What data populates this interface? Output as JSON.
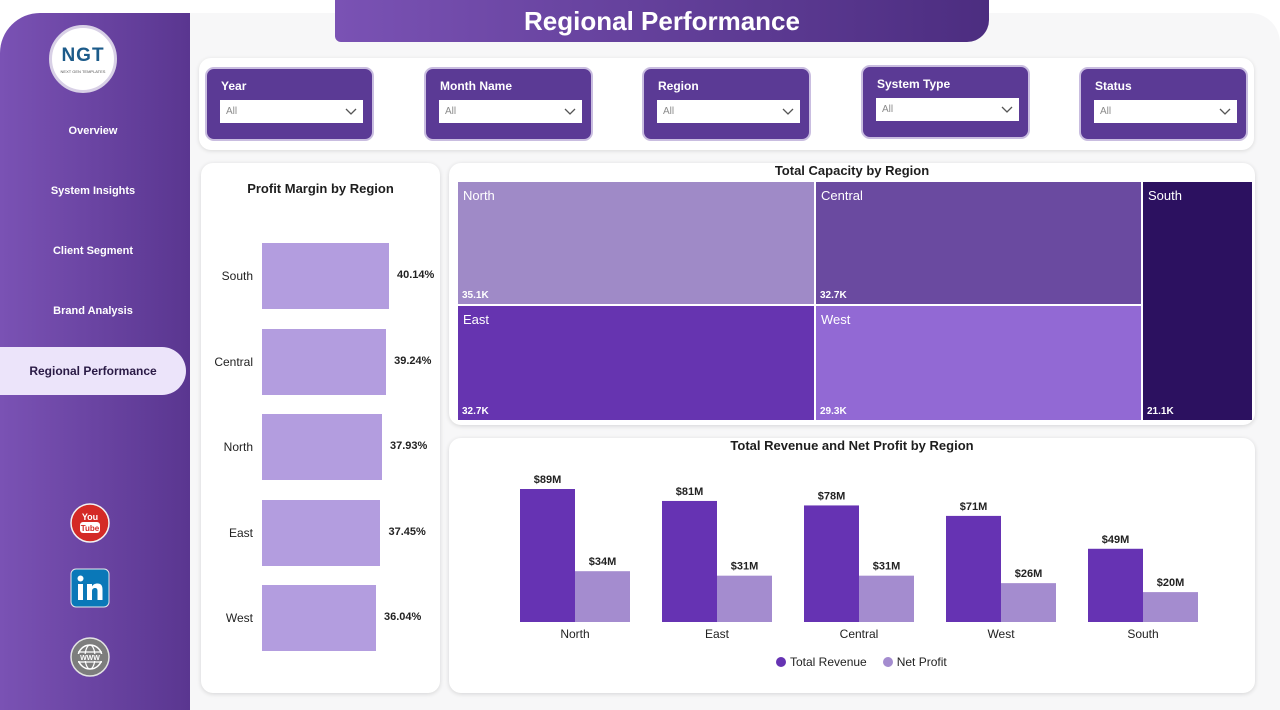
{
  "page": {
    "title": "Regional Performance"
  },
  "logo": {
    "text": "NGT",
    "subtext": "NEXT GEN TEMPLATES"
  },
  "nav": {
    "items": [
      {
        "label": "Overview"
      },
      {
        "label": "System Insights"
      },
      {
        "label": "Client Segment"
      },
      {
        "label": "Brand Analysis"
      },
      {
        "label": "Regional Performance",
        "active": true
      }
    ]
  },
  "social": {
    "icons": [
      "youtube-icon",
      "linkedin-icon",
      "globe-www-icon"
    ]
  },
  "filters": [
    {
      "label": "Year",
      "value": "All"
    },
    {
      "label": "Month Name",
      "value": "All"
    },
    {
      "label": "Region",
      "value": "All"
    },
    {
      "label": "System Type",
      "value": "All"
    },
    {
      "label": "Status",
      "value": "All"
    }
  ],
  "colors": {
    "revenue": "#6633b3",
    "profit": "#a48ccf",
    "margin_bar": "#b39ddf",
    "tm_north": "#9f8ac7",
    "tm_central": "#6a4aa0",
    "tm_south": "#2c1160",
    "tm_east": "#6634b0",
    "tm_west": "#9269d4"
  },
  "chart_data": [
    {
      "type": "bar",
      "orientation": "horizontal",
      "title": "Profit Margin by Region",
      "categories": [
        "South",
        "Central",
        "North",
        "East",
        "West"
      ],
      "values": [
        40.14,
        39.24,
        37.93,
        37.45,
        36.04
      ],
      "labels": [
        "40.14%",
        "39.24%",
        "37.93%",
        "37.45%",
        "36.04%"
      ]
    },
    {
      "type": "treemap",
      "title": "Total Capacity by Region",
      "categories": [
        "North",
        "Central",
        "East",
        "West",
        "South"
      ],
      "values": [
        35.1,
        32.7,
        32.7,
        29.3,
        21.1
      ],
      "labels": [
        "35.1K",
        "32.7K",
        "32.7K",
        "29.3K",
        "21.1K"
      ]
    },
    {
      "type": "bar",
      "title": "Total Revenue and Net Profit by Region",
      "categories": [
        "North",
        "East",
        "Central",
        "West",
        "South"
      ],
      "series": [
        {
          "name": "Total Revenue",
          "values": [
            89,
            81,
            78,
            71,
            49
          ],
          "labels": [
            "$89M",
            "$81M",
            "$78M",
            "$71M",
            "$49M"
          ]
        },
        {
          "name": "Net Profit",
          "values": [
            34,
            31,
            31,
            26,
            20
          ],
          "labels": [
            "$34M",
            "$31M",
            "$31M",
            "$26M",
            "$20M"
          ]
        }
      ],
      "legend": "bottom"
    }
  ]
}
